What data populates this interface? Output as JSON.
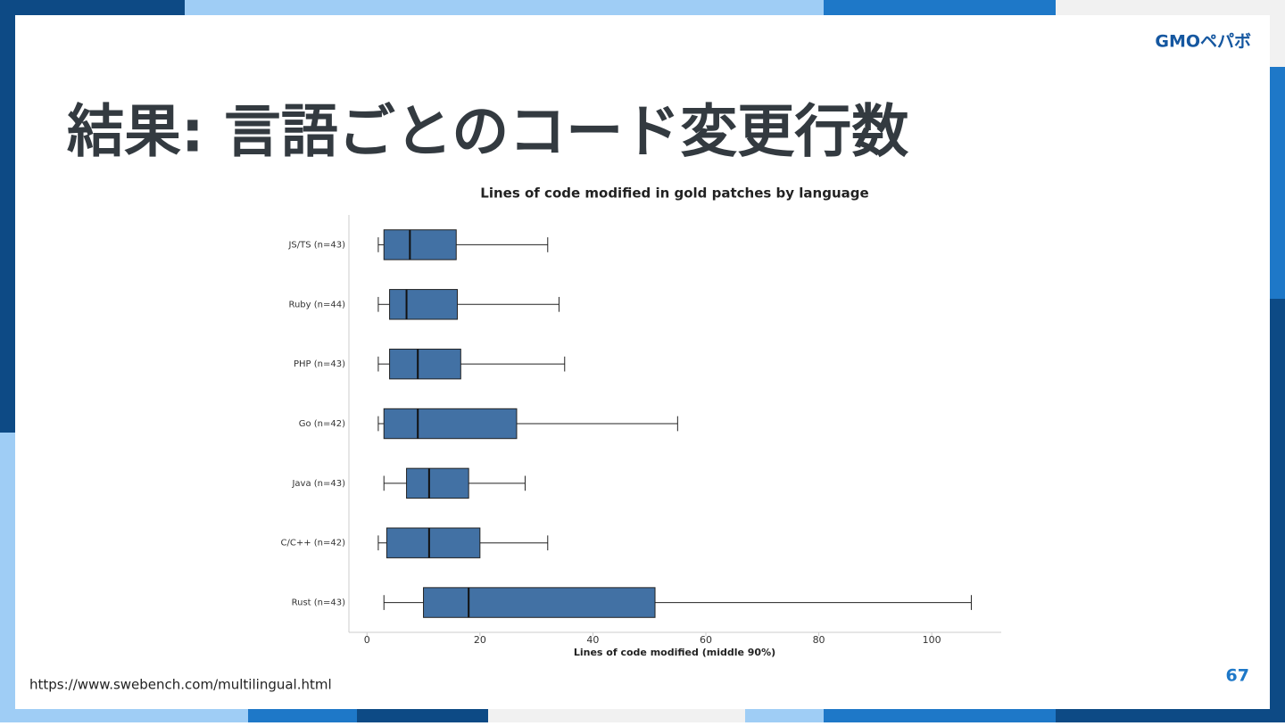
{
  "slide": {
    "logo": "GMOペパボ",
    "title": "結果: 言語ごとのコード変更行数",
    "source_url": "https://www.swebench.com/multilingual.html",
    "page_number": 67
  },
  "chart_data": {
    "type": "boxplot",
    "title": "Lines of code modified in gold patches by language",
    "x_label": "Lines of code modified (middle 90%)",
    "categories": [
      "JS/TS (n=43)",
      "Ruby (n=44)",
      "PHP (n=43)",
      "Go (n=42)",
      "Java (n=43)",
      "C/C++ (n=42)",
      "Rust (n=43)"
    ],
    "whislo": [
      2,
      2,
      2,
      2,
      3,
      2,
      3
    ],
    "q1": [
      3,
      4,
      4,
      3,
      7,
      3.5,
      10
    ],
    "median": [
      7.6,
      7,
      9,
      9,
      11,
      11,
      18
    ],
    "q3": [
      15.8,
      16,
      16.6,
      26.5,
      18,
      20,
      51
    ],
    "whishi": [
      32,
      34,
      35,
      55,
      28,
      32,
      107
    ],
    "color": "#4271a4",
    "xlim": [
      -3.2,
      112.3
    ],
    "xticks": [
      0,
      20,
      40,
      60,
      80,
      100
    ]
  }
}
